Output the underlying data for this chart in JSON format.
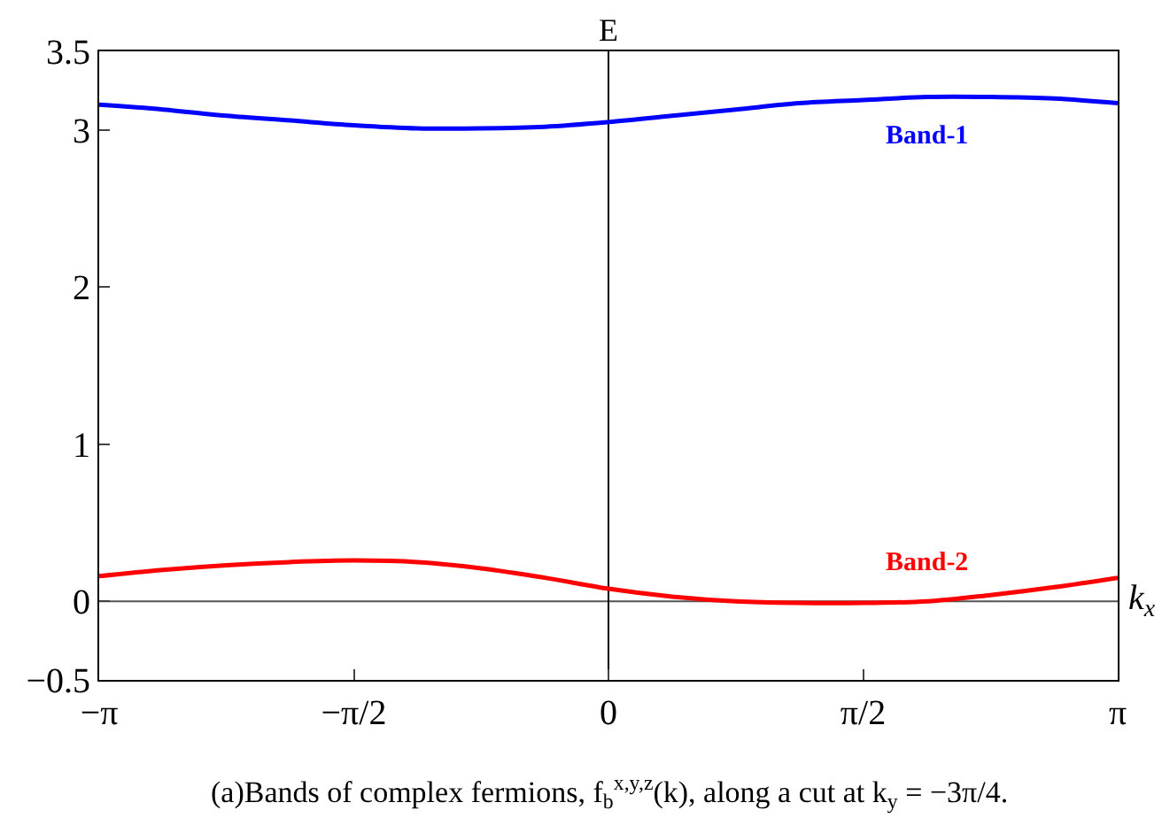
{
  "chart_data": {
    "type": "line",
    "ylabel": "E",
    "xlabel": "k$_{x}$",
    "annotations": [
      "(a)Bands of complex fermions, f$_{b}$$^{x,y,z}$(k), along a cut at k$_{y}$ = −3π/4."
    ],
    "x": [
      -3.1416,
      -2.7489,
      -2.3562,
      -1.9635,
      -1.5708,
      -1.1781,
      -0.7854,
      -0.3927,
      0,
      0.3927,
      0.7854,
      1.1781,
      1.5708,
      1.9635,
      2.3562,
      2.7489,
      3.1416
    ],
    "series": [
      {
        "name": "Band-1",
        "color": "#0000ff",
        "values": [
          3.16,
          3.13,
          3.09,
          3.06,
          3.03,
          3.01,
          3.01,
          3.02,
          3.05,
          3.09,
          3.13,
          3.17,
          3.19,
          3.21,
          3.21,
          3.2,
          3.17
        ]
      },
      {
        "name": "Band-2",
        "color": "#ff0000",
        "values": [
          0.16,
          0.2,
          0.23,
          0.25,
          0.26,
          0.25,
          0.21,
          0.15,
          0.08,
          0.03,
          0.0,
          -0.01,
          -0.01,
          0.0,
          0.04,
          0.09,
          0.15
        ]
      }
    ],
    "xlim": [
      -3.1416,
      3.1416
    ],
    "ylim": [
      -0.5,
      3.5
    ],
    "xticks": [
      {
        "value": -3.1416,
        "label": "−π"
      },
      {
        "value": -1.5708,
        "label": "−π/2"
      },
      {
        "value": 0,
        "label": "0"
      },
      {
        "value": 1.5708,
        "label": "π/2"
      },
      {
        "value": 3.1416,
        "label": "π"
      }
    ],
    "yticks": [
      {
        "value": -0.5,
        "label": "−0.5"
      },
      0,
      1,
      2,
      3,
      3.5
    ],
    "ref_lines": [
      {
        "axis": "y",
        "value": 0,
        "color": "#555555"
      },
      {
        "axis": "x",
        "value": 0,
        "color": "#000000"
      }
    ],
    "grid": false,
    "legend": false,
    "marker": "none",
    "line_style": "solid"
  }
}
